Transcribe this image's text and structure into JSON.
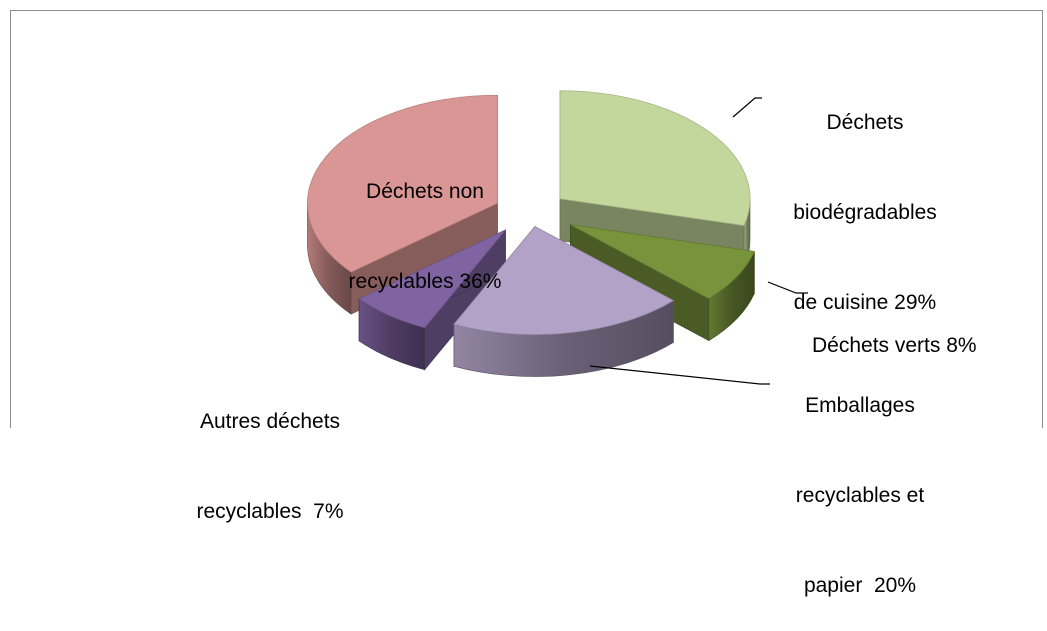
{
  "chart_data": {
    "type": "pie",
    "style": "3d-exploded",
    "title": "",
    "slices": [
      {
        "name": "Déchets biodégradables de cuisine 29%",
        "lines": [
          "Déchets",
          "biodégradables",
          "de cuisine 29%"
        ],
        "value": 29,
        "color": "#c3d69b"
      },
      {
        "name": "Déchets verts 8%",
        "lines": [
          "Déchets verts 8%"
        ],
        "value": 8,
        "color": "#77933c"
      },
      {
        "name": "Emballages recyclables et papier 20%",
        "lines": [
          "Emballages",
          "recyclables et",
          "papier  20%"
        ],
        "value": 20,
        "color": "#b3a2c7"
      },
      {
        "name": "Autres déchets recyclables 7%",
        "lines": [
          "Autres déchets",
          "recyclables  7%"
        ],
        "value": 7,
        "color": "#8064a2"
      },
      {
        "name": "Déchets non recyclables 36%",
        "lines": [
          "Déchets non",
          "recyclables 36%"
        ],
        "value": 36,
        "color": "#d99694"
      }
    ],
    "legend": "none",
    "data_labels": "outside-with-leader-lines"
  }
}
